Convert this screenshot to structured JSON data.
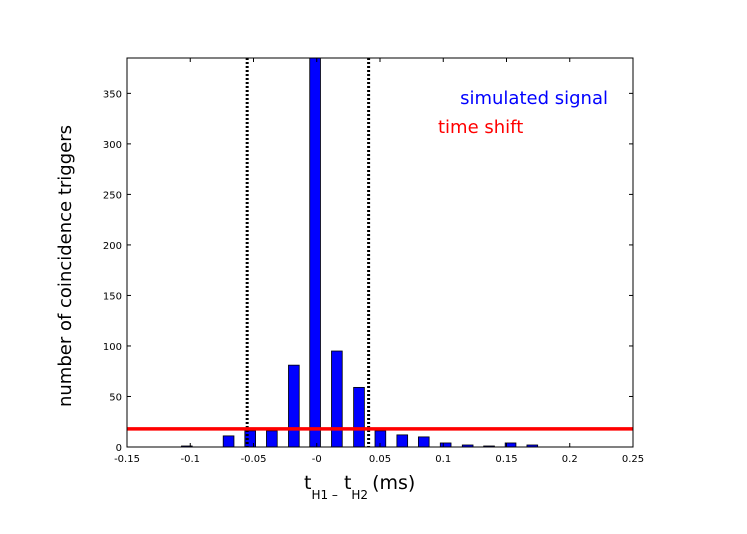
{
  "chart_data": {
    "type": "bar",
    "ylabel": "number of coincidence triggers",
    "xlabel": {
      "t1": "t",
      "sub1": "H1 –",
      "t2": "t",
      "sub2": "H2",
      "unit": "(ms)"
    },
    "xlim": [
      -0.15,
      0.25
    ],
    "ylim": [
      0,
      385
    ],
    "x_ticks": [
      -0.15,
      -0.1,
      -0.05,
      0.0,
      0.05,
      0.1,
      0.15,
      0.2,
      0.25
    ],
    "x_tick_labels": [
      "-0.15",
      "-0.1",
      "-0.05",
      "-0",
      "0.05",
      "0.1",
      "0.15",
      "0.2",
      "0.25"
    ],
    "y_ticks": [
      0,
      50,
      100,
      150,
      200,
      250,
      300,
      350
    ],
    "y_tick_labels": [
      "0",
      "50",
      "100",
      "150",
      "200",
      "250",
      "300",
      "350"
    ],
    "bar_width": 0.0085,
    "series": [
      {
        "name": "simulated signal",
        "color": "#0000ff",
        "bars": [
          {
            "x": -0.1027,
            "y": 1
          },
          {
            "x": -0.0697,
            "y": 11
          },
          {
            "x": -0.0526,
            "y": 16
          },
          {
            "x": -0.0355,
            "y": 16
          },
          {
            "x": -0.0181,
            "y": 81
          },
          {
            "x": -0.0013,
            "y": 385
          },
          {
            "x": 0.0159,
            "y": 95
          },
          {
            "x": 0.0334,
            "y": 59
          },
          {
            "x": 0.0503,
            "y": 16
          },
          {
            "x": 0.0676,
            "y": 12
          },
          {
            "x": 0.0846,
            "y": 10
          },
          {
            "x": 0.1019,
            "y": 4
          },
          {
            "x": 0.1193,
            "y": 2
          },
          {
            "x": 0.1362,
            "y": 1
          },
          {
            "x": 0.1532,
            "y": 4
          },
          {
            "x": 0.1704,
            "y": 2
          }
        ]
      },
      {
        "name": "time shift",
        "color": "#ff0000",
        "level": 18
      }
    ],
    "vlines": [
      -0.055,
      0.041
    ],
    "vline_color": "#000000",
    "legend": {
      "placement": "top-right",
      "entries": [
        {
          "label": "simulated signal",
          "color": "#0000ff"
        },
        {
          "label": "time shift",
          "color": "#ff0000"
        }
      ]
    },
    "grid": false
  }
}
